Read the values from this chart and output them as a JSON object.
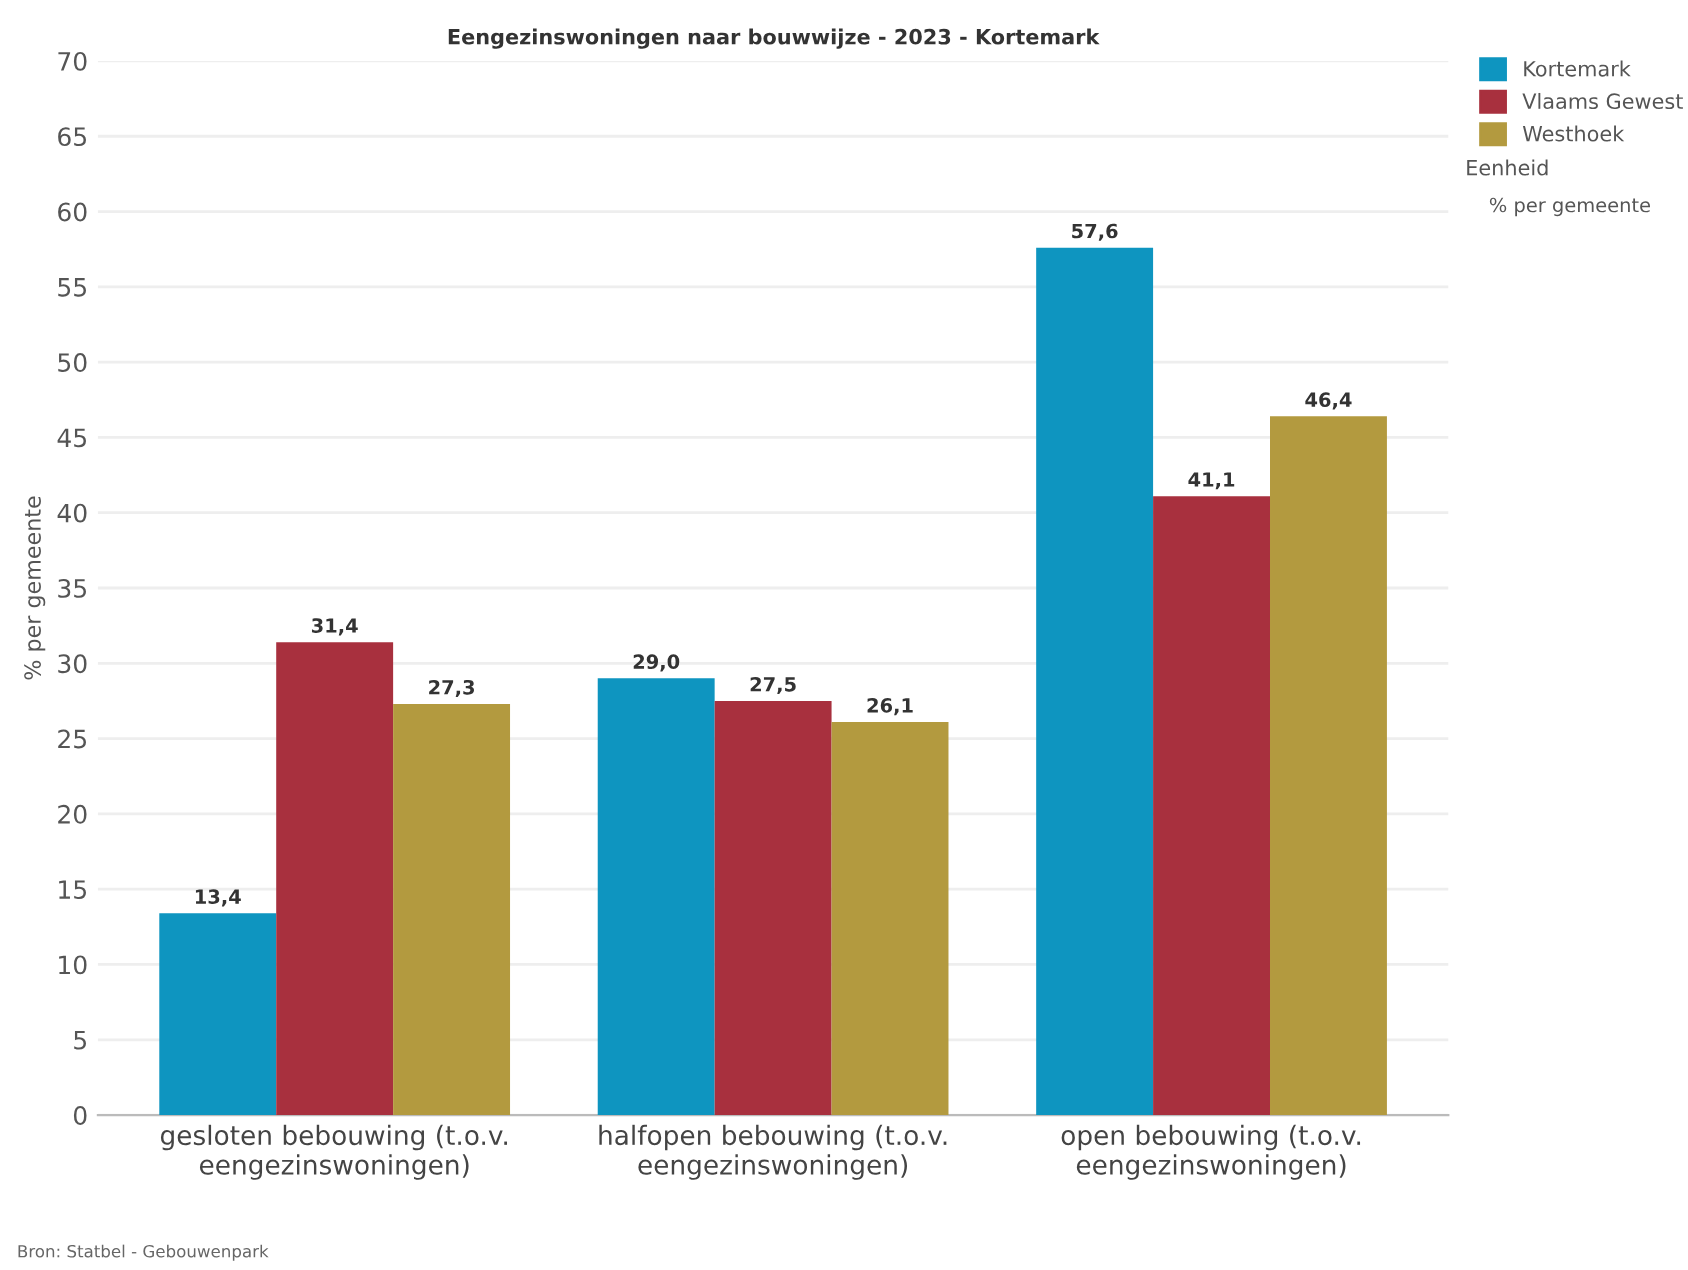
{
  "chart_data": {
    "type": "bar",
    "title": "Eengezinswoningen naar bouwwijze - 2023 - Kortemark",
    "ylabel": "% per gemeente",
    "categories": [
      "gesloten bebouwing (t.o.v.\neengezinswoningen)",
      "halfopen bebouwing (t.o.v.\neengezinswoningen)",
      "open bebouwing (t.o.v.\neengezinswoningen)"
    ],
    "series": [
      {
        "name": "Kortemark",
        "color": "#0e95c0",
        "values": [
          13.4,
          29.0,
          57.6
        ],
        "value_labels": [
          "13,4",
          "29,0",
          "57,6"
        ]
      },
      {
        "name": "Vlaams Gewest",
        "color": "#a8303e",
        "values": [
          31.4,
          27.5,
          41.1
        ],
        "value_labels": [
          "31,4",
          "27,5",
          "41,1"
        ]
      },
      {
        "name": "Westhoek",
        "color": "#b39a3f",
        "values": [
          27.3,
          26.1,
          46.4
        ],
        "value_labels": [
          "27,3",
          "26,1",
          "46,4"
        ]
      }
    ],
    "ylim": [
      0,
      70
    ],
    "yticks": [
      0,
      5,
      10,
      15,
      20,
      25,
      30,
      35,
      40,
      45,
      50,
      55,
      60,
      65,
      70
    ],
    "grid": "y",
    "legend": "top right",
    "annotations": [
      "Eenheid",
      "% per gemeente",
      "Bron: Statbel - Gebouwenpark"
    ]
  }
}
